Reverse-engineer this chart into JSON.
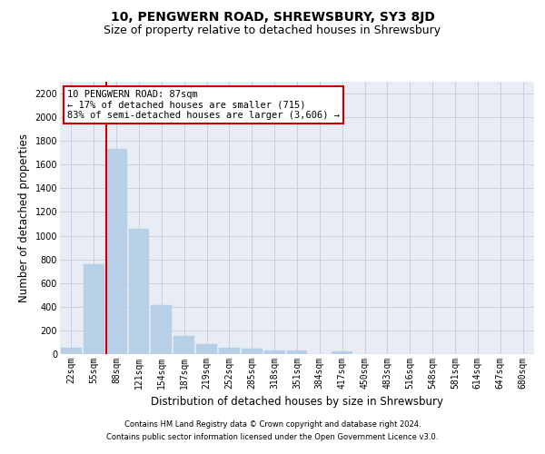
{
  "title": "10, PENGWERN ROAD, SHREWSBURY, SY3 8JD",
  "subtitle": "Size of property relative to detached houses in Shrewsbury",
  "xlabel": "Distribution of detached houses by size in Shrewsbury",
  "ylabel": "Number of detached properties",
  "footnote1": "Contains HM Land Registry data © Crown copyright and database right 2024.",
  "footnote2": "Contains public sector information licensed under the Open Government Licence v3.0.",
  "bar_labels": [
    "22sqm",
    "55sqm",
    "88sqm",
    "121sqm",
    "154sqm",
    "187sqm",
    "219sqm",
    "252sqm",
    "285sqm",
    "318sqm",
    "351sqm",
    "384sqm",
    "417sqm",
    "450sqm",
    "483sqm",
    "516sqm",
    "548sqm",
    "581sqm",
    "614sqm",
    "647sqm",
    "680sqm"
  ],
  "bar_values": [
    55,
    760,
    1730,
    1060,
    415,
    150,
    85,
    50,
    45,
    30,
    30,
    0,
    20,
    0,
    0,
    0,
    0,
    0,
    0,
    0,
    0
  ],
  "bar_color": "#b8cfe8",
  "bar_edge_color": "#b8cfe8",
  "grid_color": "#c8cfe0",
  "background_color": "#e8edf5",
  "vline_color": "#cc0000",
  "vline_x_index": 2,
  "annotation_text": "10 PENGWERN ROAD: 87sqm\n← 17% of detached houses are smaller (715)\n83% of semi-detached houses are larger (3,606) →",
  "annotation_box_facecolor": "#ffffff",
  "annotation_box_edgecolor": "#cc0000",
  "ylim": [
    0,
    2300
  ],
  "yticks": [
    0,
    200,
    400,
    600,
    800,
    1000,
    1200,
    1400,
    1600,
    1800,
    2000,
    2200
  ],
  "title_fontsize": 10,
  "subtitle_fontsize": 9,
  "ylabel_fontsize": 8.5,
  "xlabel_fontsize": 8.5,
  "tick_fontsize": 7,
  "annotation_fontsize": 7.5,
  "footnote_fontsize": 6
}
